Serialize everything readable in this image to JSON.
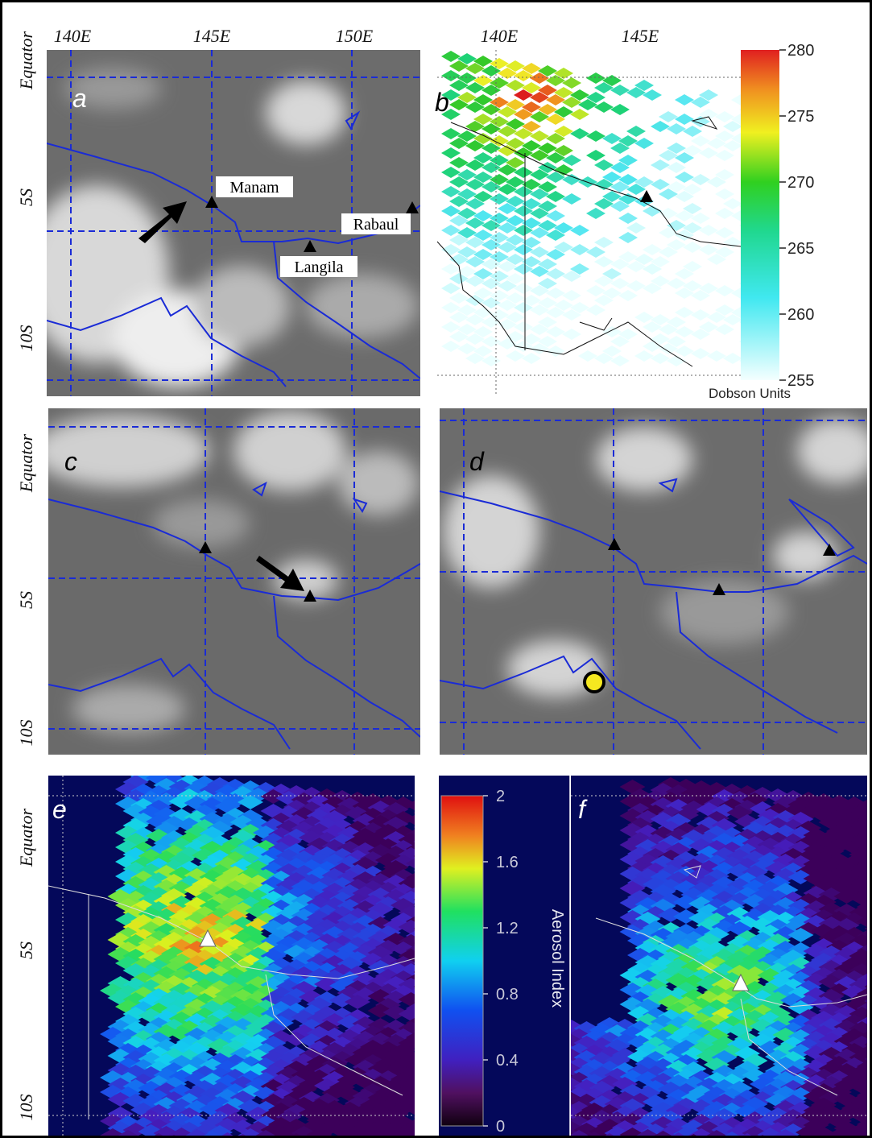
{
  "longitude_labels": [
    [
      "140E",
      "145E",
      "150E"
    ],
    [
      "140E",
      "145E"
    ]
  ],
  "latitude_labels": [
    [
      "Equator",
      "5S",
      "10S"
    ],
    [
      "Equator",
      "5S",
      "10S"
    ],
    [
      "Equator",
      "5S",
      "10S"
    ]
  ],
  "panel_labels": [
    "a",
    "b",
    "c",
    "d",
    "e",
    "f"
  ],
  "volcanoes": [
    "Manam",
    "Rabaul",
    "Langila"
  ],
  "colorbars": [
    {
      "title": "Dobson Units",
      "lim": [
        255,
        280
      ],
      "ticks": [
        255,
        260,
        265,
        270,
        275,
        280
      ]
    },
    {
      "title": "Aerosol Index",
      "lim": [
        0,
        2
      ],
      "ticks": [
        0,
        0.4,
        0.8,
        1.2,
        1.6,
        2
      ]
    }
  ]
}
